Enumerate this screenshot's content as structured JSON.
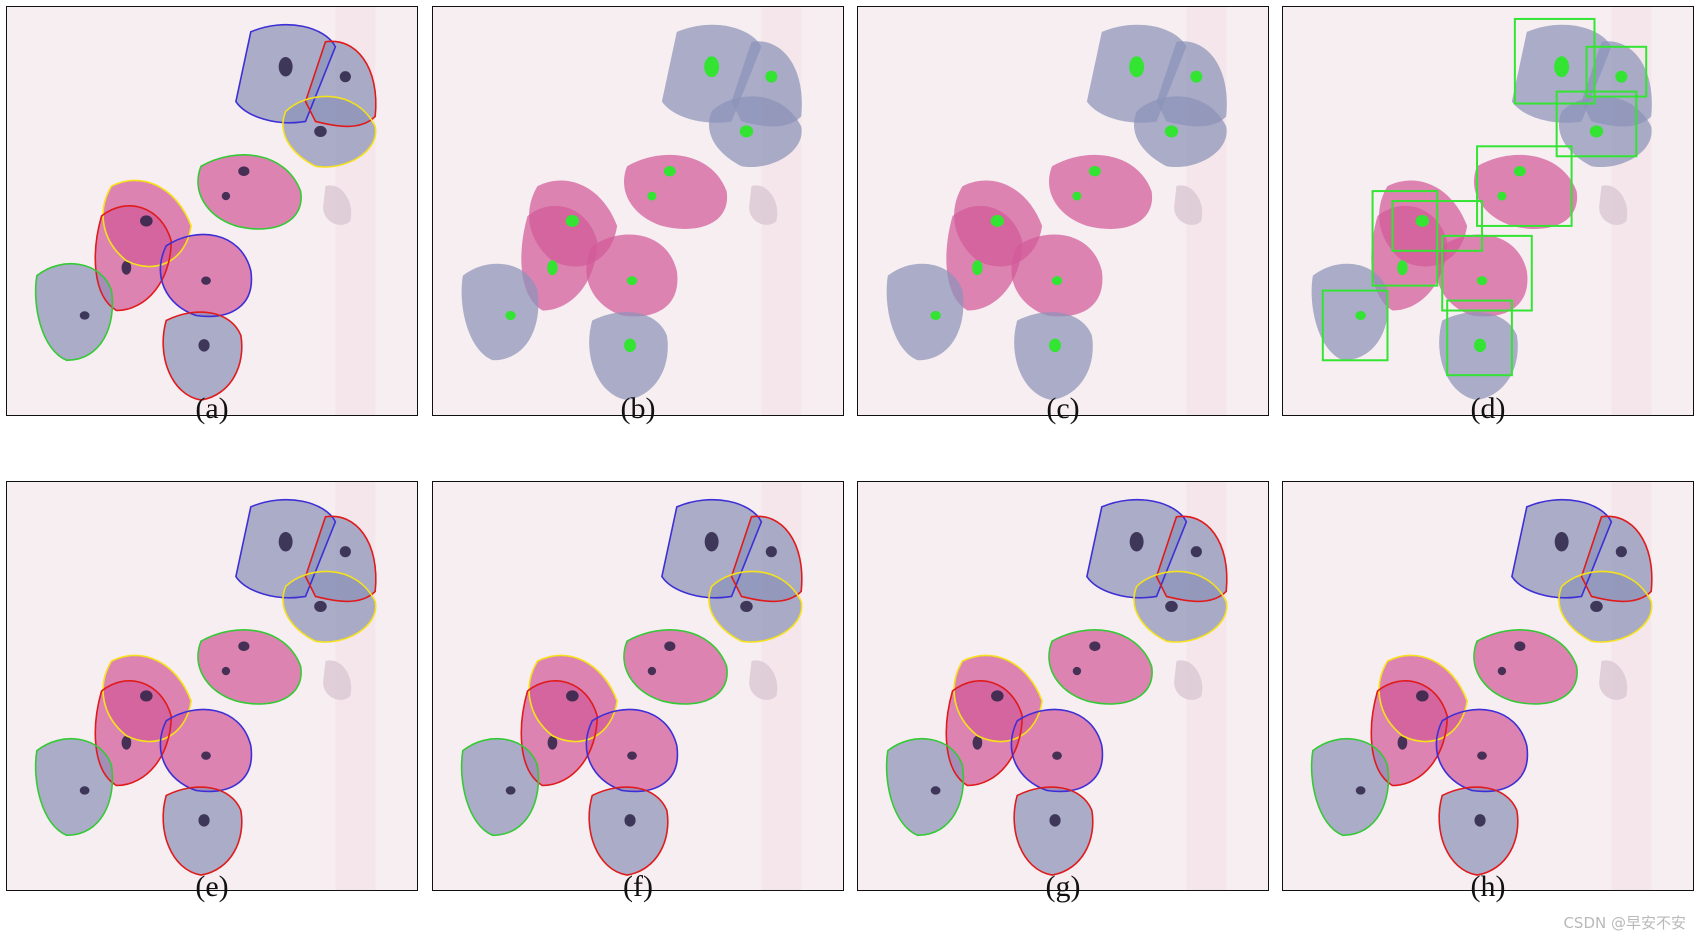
{
  "panels": [
    {
      "caption": "(a)",
      "mode": "contours"
    },
    {
      "caption": "(b)",
      "mode": "nuclei-plain"
    },
    {
      "caption": "(c)",
      "mode": "nuclei-plain"
    },
    {
      "caption": "(d)",
      "mode": "nuclei-boxes"
    },
    {
      "caption": "(e)",
      "mode": "contours"
    },
    {
      "caption": "(f)",
      "mode": "contours"
    },
    {
      "caption": "(g)",
      "mode": "contours"
    },
    {
      "caption": "(h)",
      "mode": "contours"
    }
  ],
  "watermark": "CSDN @早安不安",
  "colors": {
    "background": "#f7eef1",
    "purple_cell": "#8c93b8",
    "pink_cell": "#d15a98",
    "nucleus": "#2b2245",
    "segment_green": "#33e433",
    "contour_blue": "#3d2fd6",
    "contour_red": "#e01b1b",
    "contour_yellow": "#f5e11c",
    "contour_green": "#35c935"
  }
}
